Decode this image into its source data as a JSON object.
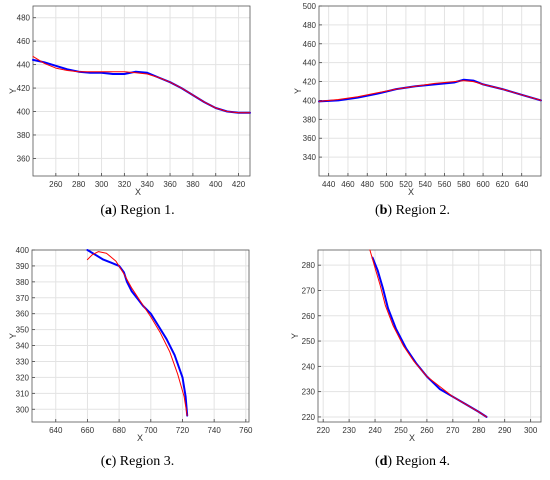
{
  "chart_data": [
    {
      "type": "line",
      "panel_label": "a",
      "caption": "Region 1.",
      "xlabel": "X",
      "ylabel": "Y",
      "xlim": [
        240,
        430
      ],
      "ylim": [
        345,
        490
      ],
      "xticks": [
        260,
        280,
        300,
        320,
        340,
        360,
        380,
        400,
        420
      ],
      "yticks": [
        360,
        380,
        400,
        420,
        440,
        460,
        480
      ],
      "grid": true,
      "series": [
        {
          "color": "#0000ff",
          "x": [
            240,
            250,
            260,
            270,
            280,
            290,
            300,
            310,
            320,
            330,
            340,
            350,
            360,
            370,
            380,
            390,
            400,
            410,
            420,
            430
          ],
          "y": [
            444,
            442,
            439,
            436,
            434,
            433,
            433,
            432,
            432,
            434,
            433,
            429,
            425,
            420,
            414,
            408,
            403,
            400,
            399,
            399
          ]
        },
        {
          "color": "#ff0000",
          "x": [
            240,
            250,
            260,
            270,
            280,
            290,
            300,
            310,
            320,
            330,
            340,
            350,
            360,
            370,
            380,
            390,
            400,
            410,
            420,
            430
          ],
          "y": [
            447,
            441,
            437,
            435,
            434,
            434,
            434,
            434,
            434,
            433,
            432,
            429,
            425,
            420,
            414,
            408,
            403,
            400,
            399,
            399
          ]
        }
      ]
    },
    {
      "type": "line",
      "panel_label": "b",
      "caption": "Region 2.",
      "xlabel": "X",
      "ylabel": "Y",
      "xlim": [
        430,
        660
      ],
      "ylim": [
        320,
        500
      ],
      "xticks": [
        440,
        460,
        480,
        500,
        520,
        540,
        560,
        580,
        600,
        620,
        640
      ],
      "yticks": [
        340,
        360,
        380,
        400,
        420,
        440,
        460,
        480,
        500
      ],
      "grid": true,
      "series": [
        {
          "color": "#0000ff",
          "x": [
            430,
            450,
            470,
            490,
            510,
            530,
            550,
            570,
            580,
            590,
            600,
            620,
            640,
            660
          ],
          "y": [
            399,
            400,
            403,
            407,
            412,
            415,
            417,
            419,
            422,
            421,
            417,
            412,
            406,
            400
          ]
        },
        {
          "color": "#ff0000",
          "x": [
            430,
            450,
            470,
            490,
            510,
            530,
            550,
            570,
            580,
            590,
            600,
            620,
            640,
            660
          ],
          "y": [
            399,
            401,
            404,
            408,
            412,
            415,
            418,
            420,
            421,
            420,
            417,
            412,
            406,
            400
          ]
        }
      ]
    },
    {
      "type": "line",
      "panel_label": "c",
      "caption": "Region 3.",
      "xlabel": "X",
      "ylabel": "Y",
      "xlim": [
        625,
        762
      ],
      "ylim": [
        292,
        400
      ],
      "xticks": [
        640,
        660,
        680,
        700,
        720,
        740,
        760
      ],
      "yticks": [
        300,
        310,
        320,
        330,
        340,
        350,
        360,
        370,
        380,
        390,
        400
      ],
      "grid": true,
      "series": [
        {
          "color": "#0000ff",
          "x": [
            660,
            665,
            670,
            675,
            680,
            683,
            685,
            688,
            692,
            695,
            700,
            705,
            710,
            715,
            720,
            722,
            723
          ],
          "y": [
            400,
            397,
            394,
            392,
            390,
            386,
            380,
            374,
            369,
            365,
            360,
            352,
            344,
            334,
            320,
            308,
            296
          ]
        },
        {
          "color": "#ff0000",
          "x": [
            660,
            663,
            667,
            672,
            678,
            683,
            688,
            694,
            700,
            706,
            712,
            717,
            721,
            723
          ],
          "y": [
            394,
            397,
            399,
            398,
            393,
            385,
            376,
            367,
            358,
            348,
            336,
            322,
            308,
            296
          ]
        }
      ]
    },
    {
      "type": "line",
      "panel_label": "d",
      "caption": "Region 4.",
      "xlabel": "X",
      "ylabel": "Y",
      "xlim": [
        218,
        304
      ],
      "ylim": [
        218,
        286
      ],
      "xticks": [
        220,
        230,
        240,
        250,
        260,
        270,
        280,
        290,
        300
      ],
      "yticks": [
        220,
        230,
        240,
        250,
        260,
        270,
        280
      ],
      "grid": true,
      "series": [
        {
          "color": "#0000ff",
          "x": [
            239,
            241,
            243,
            245,
            248,
            252,
            256,
            260,
            265,
            270,
            275,
            280,
            283
          ],
          "y": [
            283,
            278,
            271,
            263,
            255,
            247,
            241,
            236,
            231,
            228,
            225,
            222,
            220
          ]
        },
        {
          "color": "#ff0000",
          "x": [
            238,
            240,
            242,
            244,
            247,
            251,
            255,
            260,
            265,
            270,
            275,
            280,
            283
          ],
          "y": [
            286,
            279,
            272,
            264,
            256,
            248,
            242,
            236,
            232,
            228,
            225,
            222,
            220
          ]
        }
      ]
    }
  ]
}
